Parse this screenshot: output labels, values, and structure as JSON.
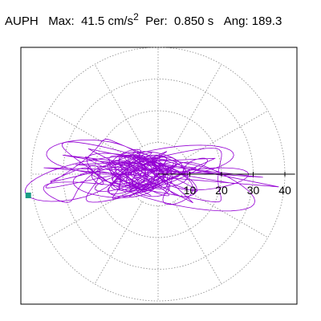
{
  "header": {
    "station": "AUPH",
    "max_label": "Max:",
    "max_value": "41.5",
    "max_unit": "cm/s",
    "max_exp": "2",
    "per_label": "Per:",
    "per_value": "0.850 s",
    "ang_label": "Ang:",
    "ang_value": "189.3"
  },
  "colors": {
    "trace": "#9400d3",
    "grid": "#888888",
    "marker": "#1a9c84",
    "axis": "#000000",
    "frame": "#000000"
  },
  "chart_data": {
    "type": "scatter",
    "subtype": "polar-orbit",
    "title": "",
    "radial_ticks": [
      "10",
      "20",
      "30",
      "40"
    ],
    "radial_tick_values": [
      10,
      20,
      30,
      40
    ],
    "rmax": 40,
    "rings": [
      10,
      20,
      30,
      40
    ],
    "spokes_deg": [
      0,
      30,
      60,
      90,
      120,
      150,
      180,
      210,
      240,
      270,
      300,
      330
    ],
    "max_amplitude": 41.5,
    "period_s": 0.85,
    "angle_deg": 189.3,
    "marker": {
      "theta_deg": 189.3,
      "r": 41.5
    },
    "grid": true,
    "legend": "none",
    "series": [
      {
        "x": [
          0,
          6,
          -4,
          12,
          -18,
          24,
          -30,
          33,
          -26,
          18,
          -9,
          4,
          -36,
          38,
          -22,
          11,
          -5,
          2
        ],
        "y": [
          0,
          3,
          -5,
          2,
          4,
          -3,
          6,
          -1,
          3,
          5,
          -7,
          1,
          2,
          -4,
          8,
          -9,
          6,
          0
        ]
      }
    ]
  }
}
